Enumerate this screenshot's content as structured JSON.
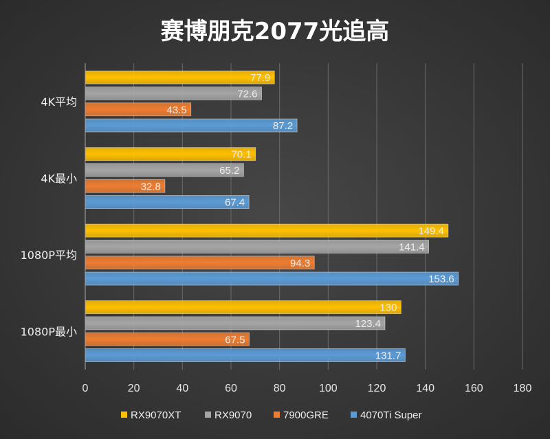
{
  "chart_data": {
    "type": "bar",
    "orientation": "horizontal",
    "title": "赛博朋克2077光追高",
    "categories": [
      "4K平均",
      "4K最小",
      "1080P平均",
      "1080P最小"
    ],
    "series": [
      {
        "name": "RX9070XT",
        "color": "#FFC000",
        "values": [
          77.9,
          70.1,
          149.4,
          130
        ]
      },
      {
        "name": "RX9070",
        "color": "#A5A5A5",
        "values": [
          72.6,
          65.2,
          141.4,
          123.4
        ]
      },
      {
        "name": "7900GRE",
        "color": "#ED7D31",
        "values": [
          43.5,
          32.8,
          94.3,
          67.5
        ]
      },
      {
        "name": "4070Ti Super",
        "color": "#5B9BD5",
        "values": [
          87.2,
          67.4,
          153.6,
          131.7
        ]
      }
    ],
    "xlim": [
      0,
      180
    ],
    "xticks": [
      0,
      20,
      40,
      60,
      80,
      100,
      120,
      140,
      160,
      180
    ],
    "grid": true,
    "legend": "bottom",
    "data_labels": true
  }
}
